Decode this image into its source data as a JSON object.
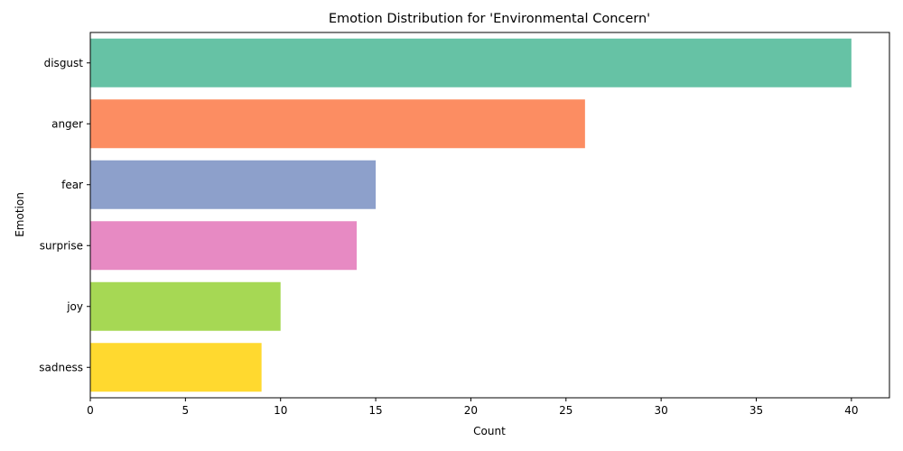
{
  "chart_data": {
    "type": "bar",
    "orientation": "horizontal",
    "title": "Emotion Distribution for 'Environmental Concern'",
    "xlabel": "Count",
    "ylabel": "Emotion",
    "categories": [
      "disgust",
      "anger",
      "fear",
      "surprise",
      "joy",
      "sadness"
    ],
    "values": [
      40,
      26,
      15,
      14,
      10,
      9
    ],
    "colors": [
      "#66c2a5",
      "#fc8d62",
      "#8da0cb",
      "#e78ac3",
      "#a6d854",
      "#ffd92f"
    ],
    "xlim": [
      0,
      42
    ],
    "xticks": [
      0,
      5,
      10,
      15,
      20,
      25,
      30,
      35,
      40
    ],
    "grid": false,
    "legend": "none"
  }
}
